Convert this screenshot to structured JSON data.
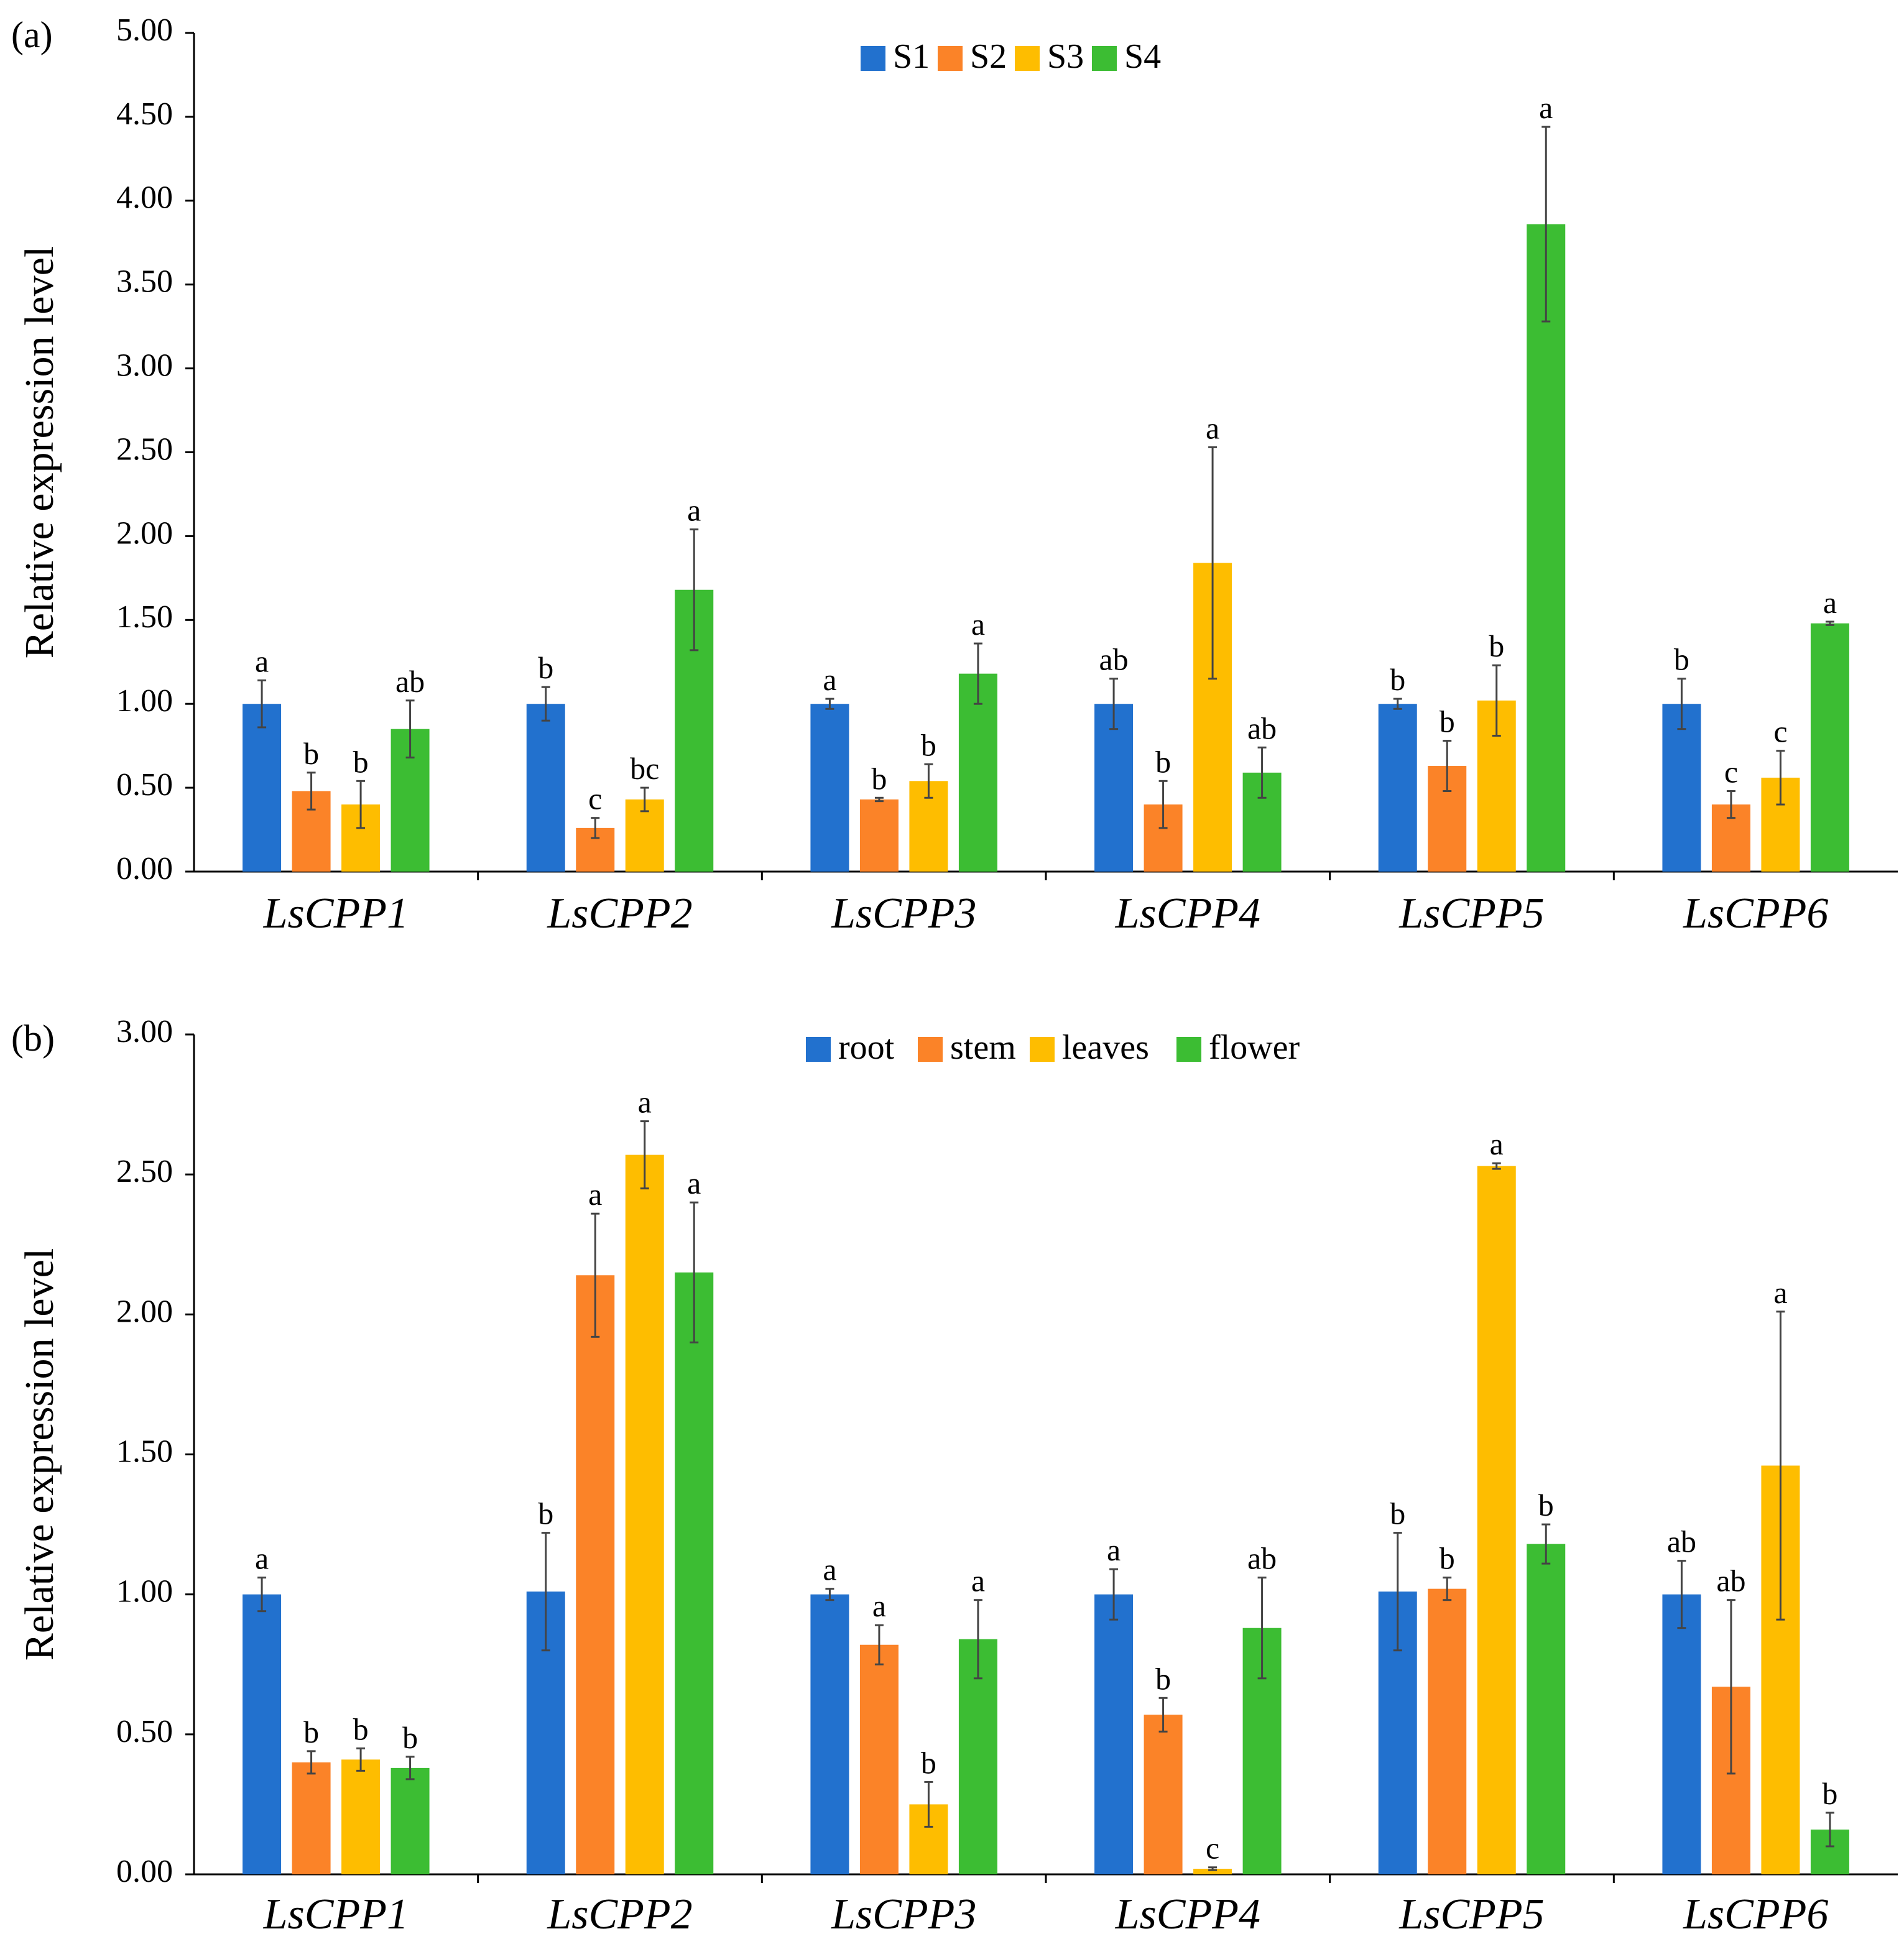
{
  "chart_data": [
    {
      "type": "bar",
      "panel_label": "(a)",
      "ylabel": "Relative expression level",
      "ylim": [
        0,
        5
      ],
      "yticks": [
        "0.00",
        "0.50",
        "1.00",
        "1.50",
        "2.00",
        "2.50",
        "3.00",
        "3.50",
        "4.00",
        "4.50",
        "5.00"
      ],
      "legend_position": "top-center",
      "categories": [
        "LsCPP1",
        "LsCPP2",
        "LsCPP3",
        "LsCPP4",
        "LsCPP5",
        "LsCPP6"
      ],
      "series": [
        {
          "name": "S1",
          "color": "#2271CE",
          "values": [
            1.0,
            1.0,
            1.0,
            1.0,
            1.0,
            1.0
          ],
          "errors": [
            0.14,
            0.1,
            0.03,
            0.15,
            0.03,
            0.15
          ],
          "sig": [
            "a",
            "b",
            "a",
            "ab",
            "b",
            "b"
          ]
        },
        {
          "name": "S2",
          "color": "#FB8328",
          "values": [
            0.48,
            0.26,
            0.43,
            0.4,
            0.63,
            0.4
          ],
          "errors": [
            0.11,
            0.06,
            0.01,
            0.14,
            0.15,
            0.08
          ],
          "sig": [
            "b",
            "c",
            "b",
            "b",
            "b",
            "c"
          ]
        },
        {
          "name": "S3",
          "color": "#FEBD00",
          "values": [
            0.4,
            0.43,
            0.54,
            1.84,
            1.02,
            0.56
          ],
          "errors": [
            0.14,
            0.07,
            0.1,
            0.69,
            0.21,
            0.16
          ],
          "sig": [
            "b",
            "bc",
            "b",
            "a",
            "b",
            "c"
          ]
        },
        {
          "name": "S4",
          "color": "#3CBD33",
          "values": [
            0.85,
            1.68,
            1.18,
            0.59,
            3.86,
            1.48
          ],
          "errors": [
            0.17,
            0.36,
            0.18,
            0.15,
            0.58,
            0.01
          ],
          "sig": [
            "ab",
            "a",
            "a",
            "ab",
            "a",
            "a"
          ]
        }
      ]
    },
    {
      "type": "bar",
      "panel_label": "(b)",
      "ylabel": "Relative expression level",
      "ylim": [
        0,
        3
      ],
      "yticks": [
        "0.00",
        "0.50",
        "1.00",
        "1.50",
        "2.00",
        "2.50",
        "3.00"
      ],
      "legend_position": "top-center",
      "categories": [
        "LsCPP1",
        "LsCPP2",
        "LsCPP3",
        "LsCPP4",
        "LsCPP5",
        "LsCPP6"
      ],
      "series": [
        {
          "name": "root",
          "color": "#2271CE",
          "values": [
            1.0,
            1.01,
            1.0,
            1.0,
            1.01,
            1.0
          ],
          "errors": [
            0.06,
            0.21,
            0.02,
            0.09,
            0.21,
            0.12
          ],
          "sig": [
            "a",
            "b",
            "a",
            "a",
            "b",
            "ab"
          ]
        },
        {
          "name": "stem",
          "color": "#FB8328",
          "values": [
            0.4,
            2.14,
            0.82,
            0.57,
            1.02,
            0.67
          ],
          "errors": [
            0.04,
            0.22,
            0.07,
            0.06,
            0.04,
            0.31
          ],
          "sig": [
            "b",
            "a",
            "a",
            "b",
            "b",
            "ab"
          ]
        },
        {
          "name": "leaves",
          "color": "#FEBD00",
          "values": [
            0.41,
            2.57,
            0.25,
            0.02,
            2.53,
            1.46
          ],
          "errors": [
            0.04,
            0.12,
            0.08,
            0.005,
            0.01,
            0.55
          ],
          "sig": [
            "b",
            "a",
            "b",
            "c",
            "a",
            "a"
          ]
        },
        {
          "name": "flower",
          "color": "#3CBD33",
          "values": [
            0.38,
            2.15,
            0.84,
            0.88,
            1.18,
            0.16
          ],
          "errors": [
            0.04,
            0.25,
            0.14,
            0.18,
            0.07,
            0.06
          ],
          "sig": [
            "b",
            "a",
            "a",
            "ab",
            "b",
            "b"
          ]
        }
      ]
    }
  ]
}
